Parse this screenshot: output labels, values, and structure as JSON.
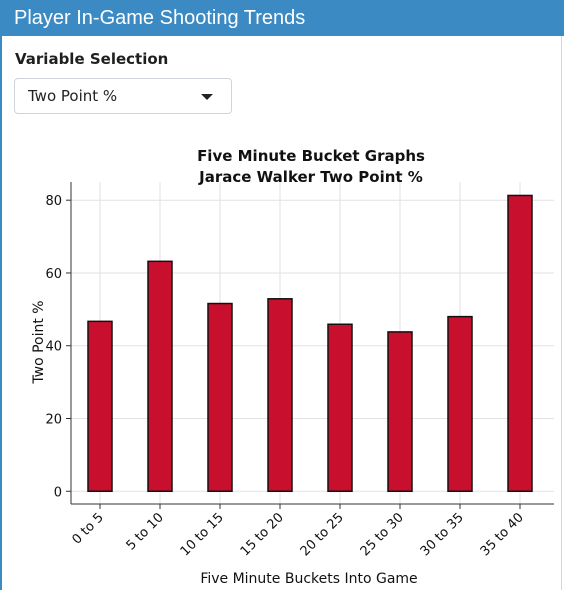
{
  "header": {
    "title": "Player In-Game Shooting Trends"
  },
  "controls": {
    "variable_label": "Variable Selection",
    "selected_variable": "Two Point %",
    "dropdown_icon": "caret-down-icon"
  },
  "colors": {
    "header_bg": "#3b8ac4",
    "bar_fill": "#c8102e",
    "bar_stroke": "#111111"
  },
  "chart_data": {
    "type": "bar",
    "title": "Five Minute Bucket Graphs",
    "subtitle": "Jarace Walker Two Point %",
    "xlabel": "Five Minute Buckets Into Game",
    "ylabel": "Two Point %",
    "categories": [
      "0 to 5",
      "5 to 10",
      "10 to 15",
      "15 to 20",
      "20 to 25",
      "25 to 30",
      "30 to 35",
      "35 to 40"
    ],
    "values": [
      46.7,
      63.2,
      51.6,
      52.9,
      45.9,
      43.8,
      48.0,
      81.3
    ],
    "yticks": [
      0,
      20,
      40,
      60,
      80
    ],
    "ylim": [
      -3.5,
      85
    ],
    "grid": true,
    "legend": "none"
  }
}
